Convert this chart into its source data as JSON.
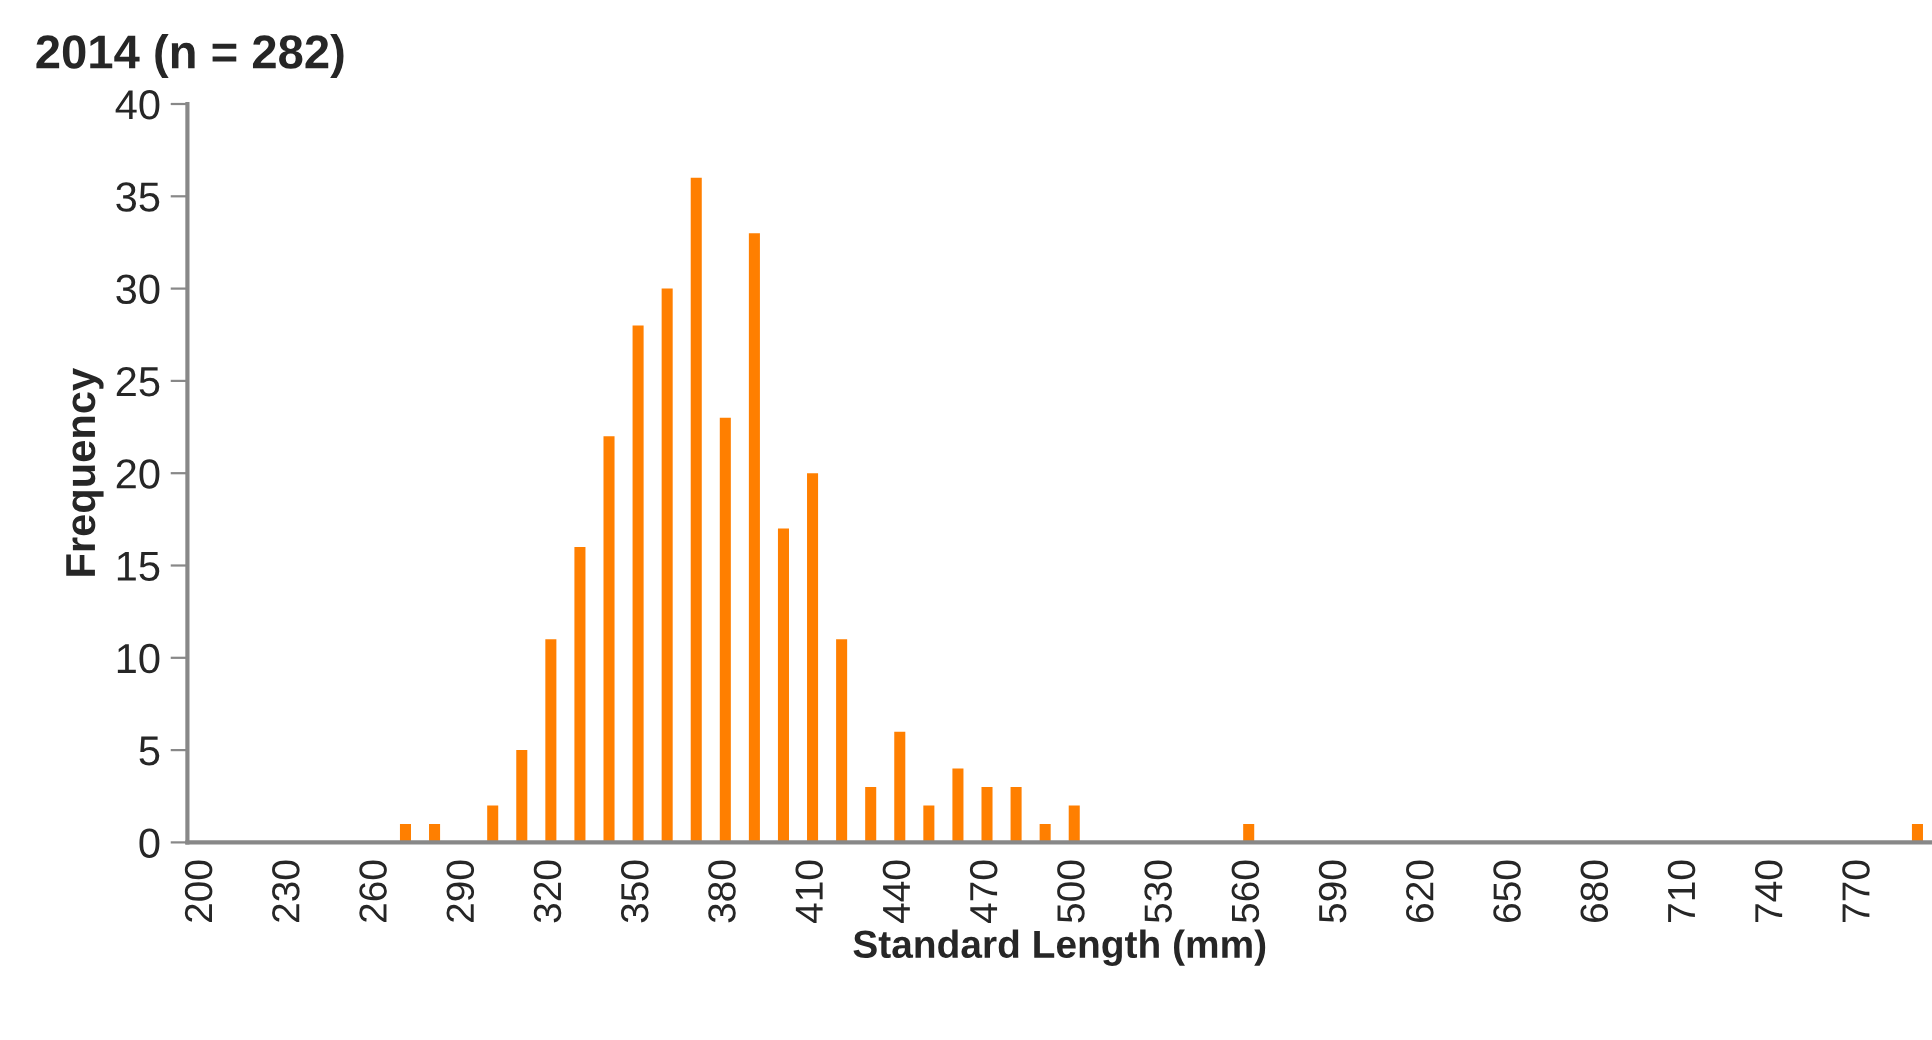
{
  "chart_data": {
    "type": "bar",
    "title": "2014 (n = 282)",
    "xlabel": "Standard Length (mm)",
    "ylabel": "Frequency",
    "categories": [
      "200",
      null,
      null,
      "230",
      null,
      null,
      "260",
      null,
      null,
      "290",
      null,
      null,
      "320",
      null,
      null,
      "350",
      null,
      null,
      "380",
      null,
      null,
      "410",
      null,
      null,
      "440",
      null,
      null,
      "470",
      null,
      null,
      "500",
      null,
      null,
      "530",
      null,
      null,
      "560",
      null,
      null,
      "590",
      null,
      null,
      "620",
      null,
      null,
      "650",
      null,
      null,
      "680",
      null,
      null,
      "710",
      null,
      null,
      "740",
      null,
      null,
      "770",
      null,
      null
    ],
    "values": [
      0,
      0,
      0,
      0,
      0,
      0,
      0,
      1,
      1,
      0,
      2,
      5,
      11,
      16,
      22,
      28,
      30,
      36,
      23,
      33,
      17,
      20,
      11,
      3,
      6,
      2,
      4,
      3,
      3,
      1,
      2,
      0,
      0,
      0,
      0,
      0,
      1,
      0,
      0,
      0,
      0,
      0,
      0,
      0,
      0,
      0,
      0,
      0,
      0,
      0,
      0,
      0,
      0,
      0,
      0,
      0,
      0,
      0,
      0,
      1
    ],
    "color": "#ff7f00",
    "ylim": [
      0,
      40
    ],
    "yticks": [
      0,
      5,
      10,
      15,
      20,
      25,
      30,
      35,
      40
    ],
    "grid": false
  }
}
